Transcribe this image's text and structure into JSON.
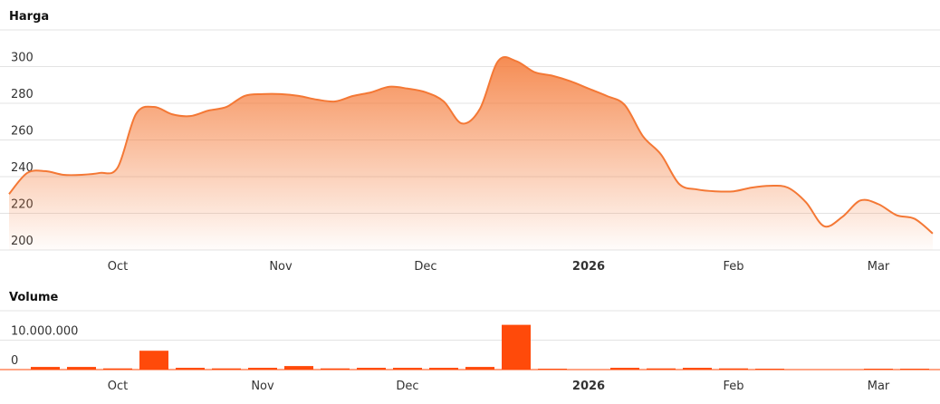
{
  "chart_data": [
    {
      "type": "area",
      "title": "Harga",
      "color": "#f47835",
      "categories": [
        null,
        null,
        null,
        null,
        null,
        null,
        "Oct",
        null,
        null,
        null,
        null,
        null,
        null,
        null,
        null,
        "Nov",
        null,
        null,
        null,
        null,
        null,
        null,
        null,
        "Dec",
        null,
        null,
        null,
        null,
        null,
        null,
        null,
        null,
        "2026",
        null,
        null,
        null,
        null,
        null,
        null,
        null,
        "Feb",
        null,
        null,
        null,
        null,
        null,
        null,
        null,
        "Mar",
        null,
        null,
        null
      ],
      "values": [
        230.5,
        242,
        243,
        241,
        241,
        242,
        245,
        274,
        278,
        274,
        273,
        276,
        278,
        284,
        285,
        285,
        284,
        282,
        281,
        284,
        286,
        289,
        288,
        286,
        281,
        269,
        277,
        303,
        303,
        297,
        295,
        292,
        288,
        284,
        279,
        262,
        252,
        236,
        233,
        232,
        232,
        234,
        235,
        234,
        226,
        213,
        218,
        227,
        225,
        219,
        217,
        209
      ],
      "ylim": [
        200,
        320
      ],
      "yticks": [
        200,
        220,
        240,
        260,
        280,
        300
      ],
      "grid": true
    },
    {
      "type": "bar",
      "title": "Volume",
      "color": "#ff4a0a",
      "categories": [
        null,
        null,
        "Oct",
        null,
        null,
        null,
        "Nov",
        null,
        null,
        null,
        "Dec",
        null,
        null,
        null,
        null,
        "2026",
        null,
        null,
        null,
        "Feb",
        null,
        null,
        null,
        "Mar",
        null
      ],
      "values": [
        900000,
        900000,
        400000,
        6400000,
        600000,
        400000,
        600000,
        1200000,
        400000,
        600000,
        600000,
        600000,
        900000,
        15200000,
        300000,
        0,
        600000,
        400000,
        600000,
        400000,
        300000,
        100000,
        100000,
        300000,
        300000
      ],
      "ylim": [
        0,
        20000000
      ],
      "yticks": [
        0,
        {
          "value": 10000000,
          "label": "10.000.000"
        }
      ],
      "grid": true
    }
  ]
}
